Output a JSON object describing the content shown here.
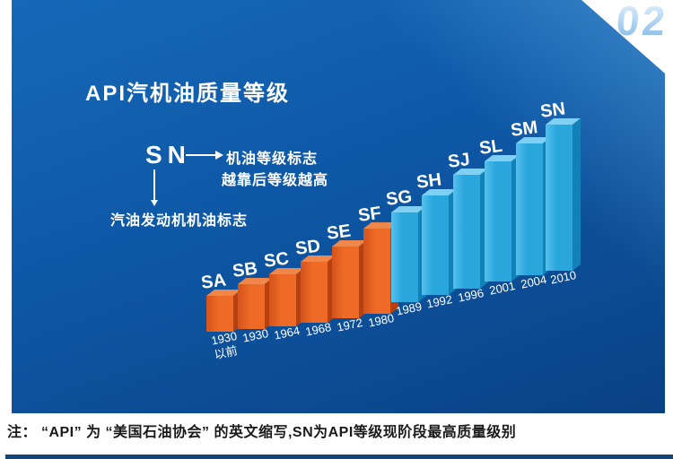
{
  "page": {
    "badge": "02",
    "note": "注： “API” 为 “美国石油协会” 的英文缩写,SN为API等级现阶段最高质量级别"
  },
  "panel": {
    "title": "API汽机油质量等级",
    "callout": {
      "code": "SN",
      "grade_mark_label": "机油等级标志",
      "grade_mark_sub": "越靠后等级越高",
      "engine_mark_label": "汽油发动机机油标志"
    }
  },
  "colors": {
    "panel_top": "#1569b8",
    "panel_mid": "#0e58a6",
    "panel_bottom": "#0a4184",
    "orange_front_dark": "#d4531b",
    "orange_front": "#ee6a26",
    "orange_side": "#b6400f",
    "orange_top": "#f0874a",
    "blue_front_light": "#56c0ec",
    "blue_front": "#29a7dd",
    "blue_side": "#1181b8",
    "blue_top": "#7fd0f2",
    "bottom_strip": "#134576",
    "text_on_panel": "#ffffff",
    "note_text": "#1a1a1a"
  },
  "chart_data": {
    "type": "bar",
    "title": "API汽机油质量等级",
    "categories": [
      "SA",
      "SB",
      "SC",
      "SD",
      "SE",
      "SF",
      "SG",
      "SH",
      "SJ",
      "SL",
      "SM",
      "SN"
    ],
    "x_labels": [
      "1930以前",
      "1930",
      "1964",
      "1968",
      "1972",
      "1980",
      "1989",
      "1992",
      "1996",
      "2001",
      "2004",
      "2010"
    ],
    "values": [
      1,
      2,
      3,
      4,
      5,
      6,
      7,
      8,
      9,
      10,
      11,
      12
    ],
    "xlabel": "",
    "ylabel": "",
    "grid": false,
    "legend": "none",
    "bars": [
      {
        "grade": "SA",
        "year_lines": [
          "1930",
          "以前"
        ],
        "group": "orange"
      },
      {
        "grade": "SB",
        "year_lines": [
          "1930"
        ],
        "group": "orange"
      },
      {
        "grade": "SC",
        "year_lines": [
          "1964"
        ],
        "group": "orange"
      },
      {
        "grade": "SD",
        "year_lines": [
          "1968"
        ],
        "group": "orange"
      },
      {
        "grade": "SE",
        "year_lines": [
          "1972"
        ],
        "group": "orange"
      },
      {
        "grade": "SF",
        "year_lines": [
          "1980"
        ],
        "group": "orange"
      },
      {
        "grade": "SG",
        "year_lines": [
          "1989"
        ],
        "group": "blue"
      },
      {
        "grade": "SH",
        "year_lines": [
          "1992"
        ],
        "group": "blue"
      },
      {
        "grade": "SJ",
        "year_lines": [
          "1996"
        ],
        "group": "blue"
      },
      {
        "grade": "SL",
        "year_lines": [
          "2001"
        ],
        "group": "blue"
      },
      {
        "grade": "SM",
        "year_lines": [
          "2004"
        ],
        "group": "blue"
      },
      {
        "grade": "SN",
        "year_lines": [
          "2010"
        ],
        "group": "blue"
      }
    ]
  }
}
